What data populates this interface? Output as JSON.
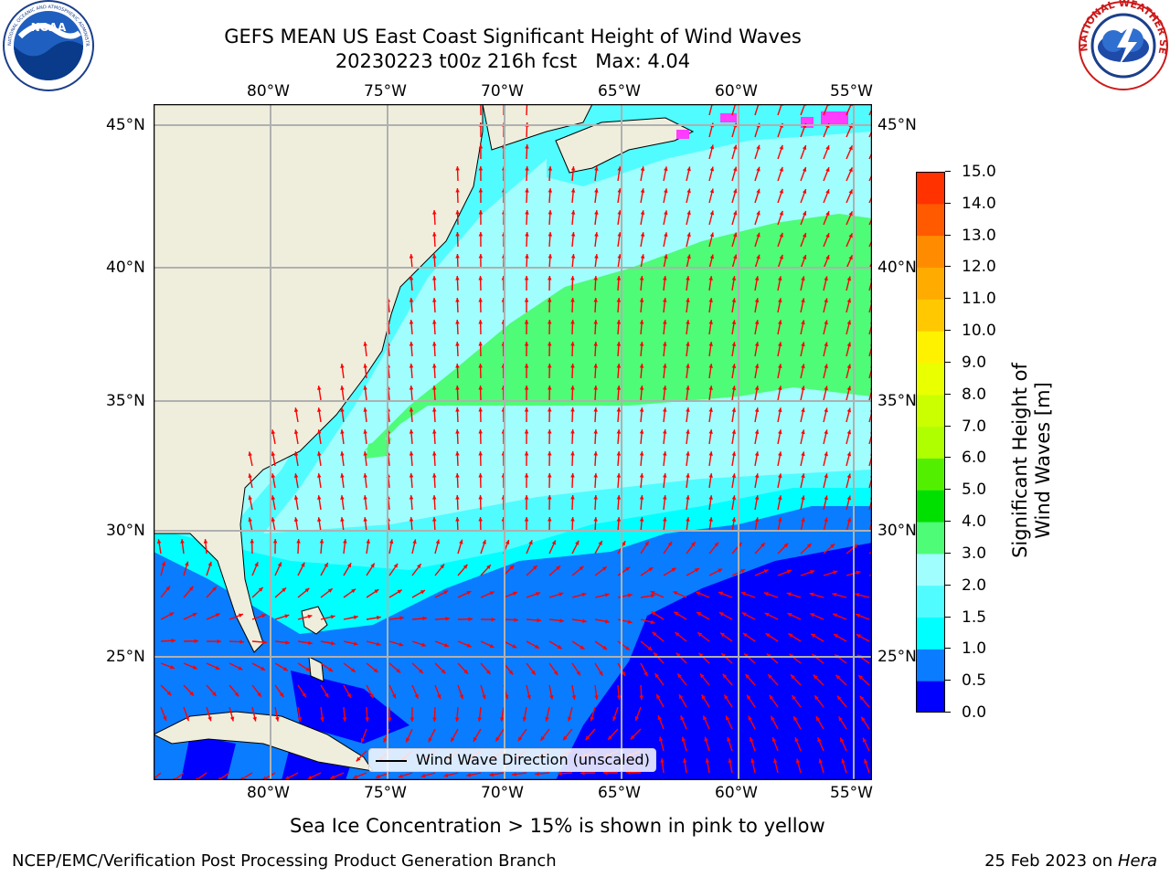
{
  "header": {
    "title_line1": "GEFS MEAN US East Coast Significant Height of Wind Waves",
    "title_line2": "20230223 t00z 216h fcst   Max: 4.04"
  },
  "logos": {
    "left_logo_text": "NOAA",
    "left_logo_ring_text": "NATIONAL OCEANIC AND ATMOSPHERIC ADMINISTRATION · U.S. DEPARTMENT OF COMMERCE",
    "right_logo_ring_text": "NATIONAL WEATHER SERVICE"
  },
  "map": {
    "lon_labels": [
      "80°W",
      "75°W",
      "70°W",
      "65°W",
      "60°W",
      "55°W"
    ],
    "lat_labels": [
      "45°N",
      "40°N",
      "35°N",
      "30°N",
      "25°N"
    ],
    "legend_label": "Wind Wave Direction (unscaled)",
    "colors": {
      "land": "#efeedd",
      "arrow": "#ff0000",
      "grid": "#b0b0b0"
    },
    "field_description_max": 4.04
  },
  "colorbar": {
    "label": "Significant Height of Wind Waves [m]",
    "ticks": [
      "0.0",
      "0.5",
      "1.0",
      "1.5",
      "2.0",
      "3.0",
      "4.0",
      "5.0",
      "6.0",
      "7.0",
      "8.0",
      "9.0",
      "10.0",
      "11.0",
      "12.0",
      "13.0",
      "14.0",
      "15.0"
    ],
    "colors": [
      "#0000ff",
      "#0a7cff",
      "#00ffff",
      "#50fcff",
      "#a0fefe",
      "#4efc78",
      "#00e000",
      "#52f000",
      "#b0ff00",
      "#cbff00",
      "#eaff00",
      "#fff200",
      "#ffc800",
      "#ffab00",
      "#ff8c00",
      "#ff5a00",
      "#ff3200"
    ]
  },
  "notes": {
    "sea_ice": "Sea Ice Concentration > 15% is shown in pink to yellow"
  },
  "footer": {
    "left": "NCEP/EMC/Verification Post Processing Product Generation Branch",
    "right_prefix": "25 Feb 2023 on ",
    "right_machine": "Hera"
  }
}
